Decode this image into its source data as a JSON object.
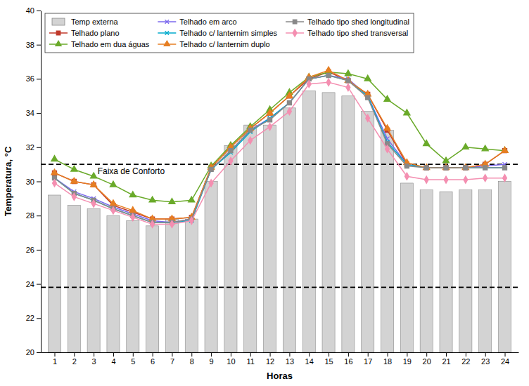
{
  "chart_data": {
    "type": "line",
    "x": [
      1,
      2,
      3,
      4,
      5,
      6,
      7,
      8,
      9,
      10,
      11,
      12,
      13,
      14,
      15,
      16,
      17,
      18,
      19,
      20,
      21,
      22,
      23,
      24
    ],
    "xlim": [
      0.3,
      24.7
    ],
    "xticks": [
      1,
      2,
      3,
      4,
      5,
      6,
      7,
      8,
      9,
      10,
      11,
      12,
      13,
      14,
      15,
      16,
      17,
      18,
      19,
      20,
      21,
      22,
      23,
      24
    ],
    "ylim": [
      20,
      40
    ],
    "yticks": [
      20,
      22,
      24,
      26,
      28,
      30,
      32,
      34,
      36,
      38,
      40
    ],
    "xlabel": "Horas",
    "ylabel": "Temperatura, °C",
    "grid": false,
    "legend": "upper left",
    "series": [
      {
        "name": "Temp externa",
        "type": "bar",
        "color": "#d3d3d3",
        "values": [
          29.2,
          28.6,
          28.4,
          28.0,
          27.7,
          27.4,
          27.8,
          27.8,
          30.0,
          32.1,
          33.3,
          33.3,
          34.3,
          35.3,
          35.2,
          35.0,
          34.1,
          33.0,
          29.9,
          29.5,
          29.4,
          29.5,
          29.5,
          30.0
        ]
      },
      {
        "name": "Telhado plano",
        "type": "line",
        "color": "#c0392b",
        "marker": "square",
        "values": [
          30.5,
          30.0,
          29.8,
          28.6,
          28.2,
          27.8,
          27.8,
          27.9,
          30.8,
          32.0,
          33.1,
          34.0,
          35.0,
          36.0,
          36.4,
          35.9,
          35.1,
          33.0,
          31.0,
          30.8,
          30.8,
          30.8,
          31.0,
          31.8
        ]
      },
      {
        "name": "Telhado em dua águas",
        "type": "line",
        "color": "#6aaa2a",
        "marker": "triangle",
        "values": [
          31.3,
          30.7,
          30.3,
          29.8,
          29.2,
          28.9,
          28.8,
          28.9,
          30.9,
          32.1,
          33.2,
          34.2,
          35.2,
          36.1,
          36.4,
          36.3,
          36.0,
          34.8,
          34.0,
          32.2,
          31.2,
          32.0,
          31.9,
          31.8
        ]
      },
      {
        "name": "Telhado em arco",
        "type": "line",
        "color": "#7b68ee",
        "marker": "x",
        "values": [
          30.2,
          29.4,
          29.0,
          28.5,
          28.1,
          27.7,
          27.6,
          27.8,
          30.7,
          31.8,
          33.0,
          33.7,
          34.6,
          36.0,
          36.2,
          36.0,
          35.0,
          32.5,
          31.0,
          30.8,
          30.8,
          30.8,
          30.9,
          31.0
        ]
      },
      {
        "name": "Telhado c/ lanternim simples",
        "type": "line",
        "color": "#00aacc",
        "marker": "x",
        "values": [
          30.2,
          29.3,
          28.9,
          28.4,
          28.0,
          27.6,
          27.6,
          27.7,
          30.7,
          31.7,
          32.9,
          33.7,
          34.6,
          36.0,
          36.2,
          35.9,
          35.0,
          32.3,
          31.0,
          30.8,
          30.8,
          30.8,
          30.8,
          30.8
        ]
      },
      {
        "name": "Telhado c/ lanternim duplo",
        "type": "line",
        "color": "#e67e22",
        "marker": "triangle",
        "values": [
          30.5,
          30.0,
          29.8,
          28.7,
          28.3,
          27.8,
          27.8,
          27.9,
          30.8,
          32.0,
          33.1,
          34.0,
          35.0,
          36.1,
          36.5,
          35.9,
          35.1,
          33.1,
          31.1,
          30.8,
          30.8,
          30.8,
          31.0,
          31.8
        ]
      },
      {
        "name": "Telhado tipo shed longitudinal",
        "type": "line",
        "color": "#888888",
        "marker": "square",
        "values": [
          30.2,
          29.3,
          28.9,
          28.4,
          28.0,
          27.6,
          27.6,
          27.8,
          30.7,
          31.8,
          33.0,
          33.6,
          34.6,
          36.0,
          36.2,
          35.9,
          34.9,
          32.2,
          30.9,
          30.8,
          30.8,
          30.8,
          30.8,
          30.8
        ]
      },
      {
        "name": "Telhado tipo shed transversal",
        "type": "line",
        "color": "#f48fb1",
        "marker": "diamond",
        "values": [
          29.9,
          29.1,
          28.7,
          28.3,
          27.9,
          27.5,
          27.5,
          27.7,
          29.9,
          31.2,
          32.4,
          33.2,
          34.1,
          35.7,
          35.8,
          35.5,
          33.7,
          31.9,
          30.3,
          30.1,
          30.1,
          30.1,
          30.2,
          30.2
        ]
      }
    ],
    "reference_lines": [
      {
        "value": 31.0,
        "line_style": "dashed",
        "color": "#000000"
      },
      {
        "value": 23.8,
        "line_style": "dashed",
        "color": "#000000"
      }
    ],
    "annotations": [
      {
        "text": "Faixa de Conforto",
        "x": 3.2,
        "y": 30.45
      }
    ]
  }
}
